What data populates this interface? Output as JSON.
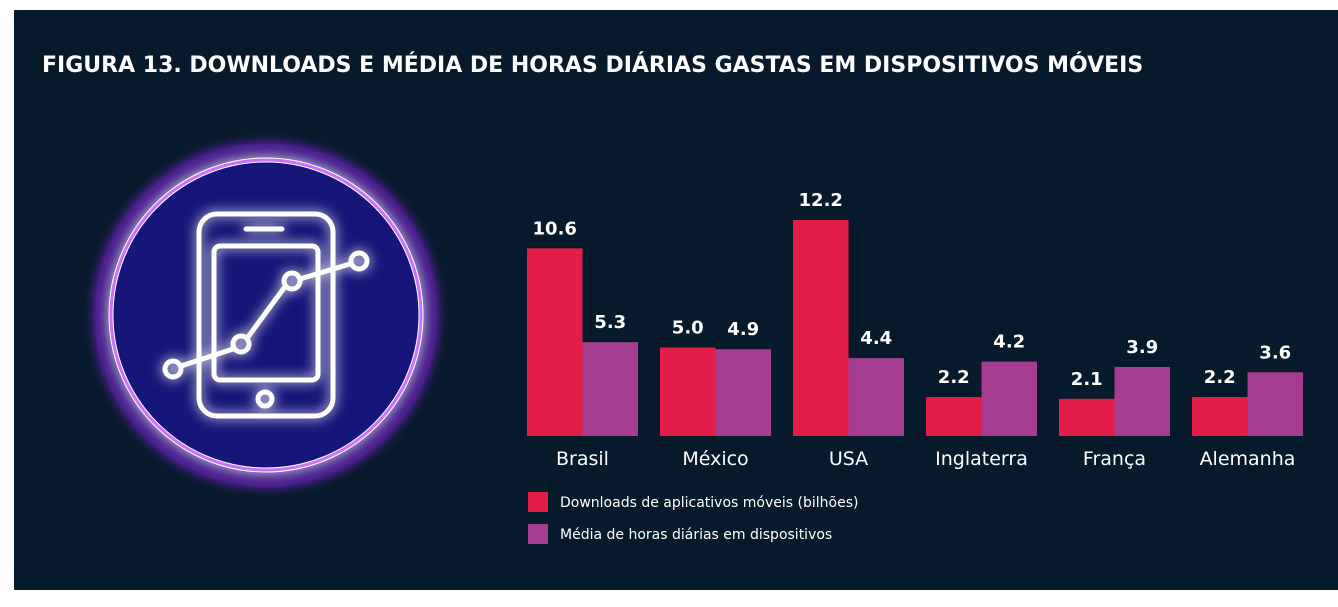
{
  "chart_data": {
    "type": "bar",
    "title": "FIGURA 13. DOWNLOADS E MÉDIA DE HORAS DIÁRIAS GASTAS EM DISPOSITIVOS MÓVEIS",
    "categories": [
      "Brasil",
      "México",
      "USA",
      "Inglaterra",
      "França",
      "Alemanha"
    ],
    "series": [
      {
        "name": "Downloads de aplicativos móveis (bilhões)",
        "color": "#e31c48",
        "values": [
          10.6,
          5.0,
          12.2,
          2.2,
          2.1,
          2.2
        ],
        "value_labels": [
          "10.6",
          "5.0",
          "12.2",
          "2.2",
          "2.1",
          "2.2"
        ]
      },
      {
        "name": "Média de horas diárias em dispositivos",
        "color": "#a43d8f",
        "values": [
          5.3,
          4.9,
          4.4,
          4.2,
          3.9,
          3.6
        ],
        "value_labels": [
          "5.3",
          "4.9",
          "4.4",
          "4.2",
          "3.9",
          "3.6"
        ]
      }
    ]
  }
}
